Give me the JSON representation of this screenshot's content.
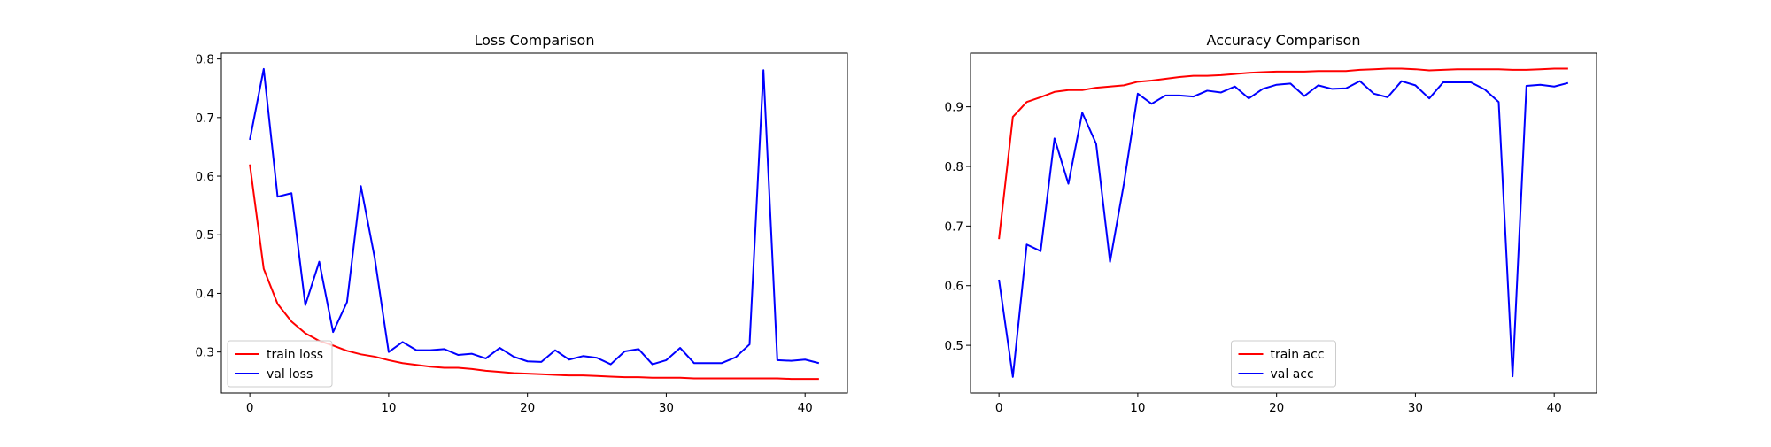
{
  "chart_data": [
    {
      "type": "line",
      "title": "Loss Comparison",
      "xlabel": "",
      "ylabel": "",
      "x": [
        0,
        1,
        2,
        3,
        4,
        5,
        6,
        7,
        8,
        9,
        10,
        11,
        12,
        13,
        14,
        15,
        16,
        17,
        18,
        19,
        20,
        21,
        22,
        23,
        24,
        25,
        26,
        27,
        28,
        29,
        30,
        31,
        32,
        33,
        34,
        35,
        36,
        37,
        38,
        39,
        40,
        41
      ],
      "xlim": [
        -2.05,
        43.05
      ],
      "ylim": [
        0.23,
        0.81
      ],
      "xticks": [
        0,
        10,
        20,
        30,
        40
      ],
      "yticks": [
        0.3,
        0.4,
        0.5,
        0.6,
        0.7,
        0.8
      ],
      "ytick_labels": [
        "0.3",
        "0.4",
        "0.5",
        "0.6",
        "0.7",
        "0.8"
      ],
      "legend_position": "lower-left",
      "series": [
        {
          "name": "train loss",
          "color": "#ff0000",
          "values": [
            0.62,
            0.442,
            0.382,
            0.352,
            0.332,
            0.319,
            0.311,
            0.302,
            0.296,
            0.292,
            0.286,
            0.281,
            0.278,
            0.275,
            0.273,
            0.273,
            0.271,
            0.268,
            0.266,
            0.264,
            0.263,
            0.262,
            0.261,
            0.26,
            0.26,
            0.259,
            0.258,
            0.257,
            0.257,
            0.256,
            0.256,
            0.256,
            0.255,
            0.255,
            0.255,
            0.255,
            0.255,
            0.255,
            0.255,
            0.254,
            0.254,
            0.254
          ]
        },
        {
          "name": "val loss",
          "color": "#0000ff",
          "values": [
            0.662,
            0.783,
            0.565,
            0.571,
            0.38,
            0.454,
            0.334,
            0.385,
            0.583,
            0.46,
            0.3,
            0.317,
            0.303,
            0.303,
            0.305,
            0.295,
            0.297,
            0.289,
            0.307,
            0.292,
            0.284,
            0.283,
            0.303,
            0.287,
            0.293,
            0.29,
            0.279,
            0.301,
            0.305,
            0.279,
            0.286,
            0.307,
            0.281,
            0.281,
            0.281,
            0.291,
            0.313,
            0.781,
            0.286,
            0.285,
            0.287,
            0.281
          ]
        }
      ]
    },
    {
      "type": "line",
      "title": "Accuracy Comparison",
      "xlabel": "",
      "ylabel": "",
      "x": [
        0,
        1,
        2,
        3,
        4,
        5,
        6,
        7,
        8,
        9,
        10,
        11,
        12,
        13,
        14,
        15,
        16,
        17,
        18,
        19,
        20,
        21,
        22,
        23,
        24,
        25,
        26,
        27,
        28,
        29,
        30,
        31,
        32,
        33,
        34,
        35,
        36,
        37,
        38,
        39,
        40,
        41
      ],
      "xlim": [
        -2.05,
        43.05
      ],
      "ylim": [
        0.42,
        0.99
      ],
      "xticks": [
        0,
        10,
        20,
        30,
        40
      ],
      "yticks": [
        0.5,
        0.6,
        0.7,
        0.8,
        0.9
      ],
      "ytick_labels": [
        "0.5",
        "0.6",
        "0.7",
        "0.8",
        "0.9"
      ],
      "legend_position": "lower-center",
      "series": [
        {
          "name": "train acc",
          "color": "#ff0000",
          "values": [
            0.678,
            0.883,
            0.908,
            0.916,
            0.925,
            0.928,
            0.928,
            0.932,
            0.934,
            0.936,
            0.942,
            0.944,
            0.947,
            0.95,
            0.952,
            0.952,
            0.953,
            0.955,
            0.957,
            0.958,
            0.959,
            0.959,
            0.959,
            0.96,
            0.96,
            0.96,
            0.962,
            0.963,
            0.964,
            0.964,
            0.963,
            0.961,
            0.962,
            0.963,
            0.963,
            0.963,
            0.963,
            0.962,
            0.962,
            0.963,
            0.964,
            0.964
          ]
        },
        {
          "name": "val acc",
          "color": "#0000ff",
          "values": [
            0.61,
            0.447,
            0.669,
            0.658,
            0.847,
            0.771,
            0.89,
            0.838,
            0.64,
            0.771,
            0.922,
            0.905,
            0.919,
            0.919,
            0.917,
            0.927,
            0.924,
            0.934,
            0.914,
            0.93,
            0.937,
            0.939,
            0.918,
            0.936,
            0.93,
            0.931,
            0.943,
            0.922,
            0.916,
            0.943,
            0.936,
            0.914,
            0.941,
            0.941,
            0.941,
            0.929,
            0.908,
            0.448,
            0.935,
            0.937,
            0.934,
            0.94
          ]
        }
      ]
    }
  ]
}
